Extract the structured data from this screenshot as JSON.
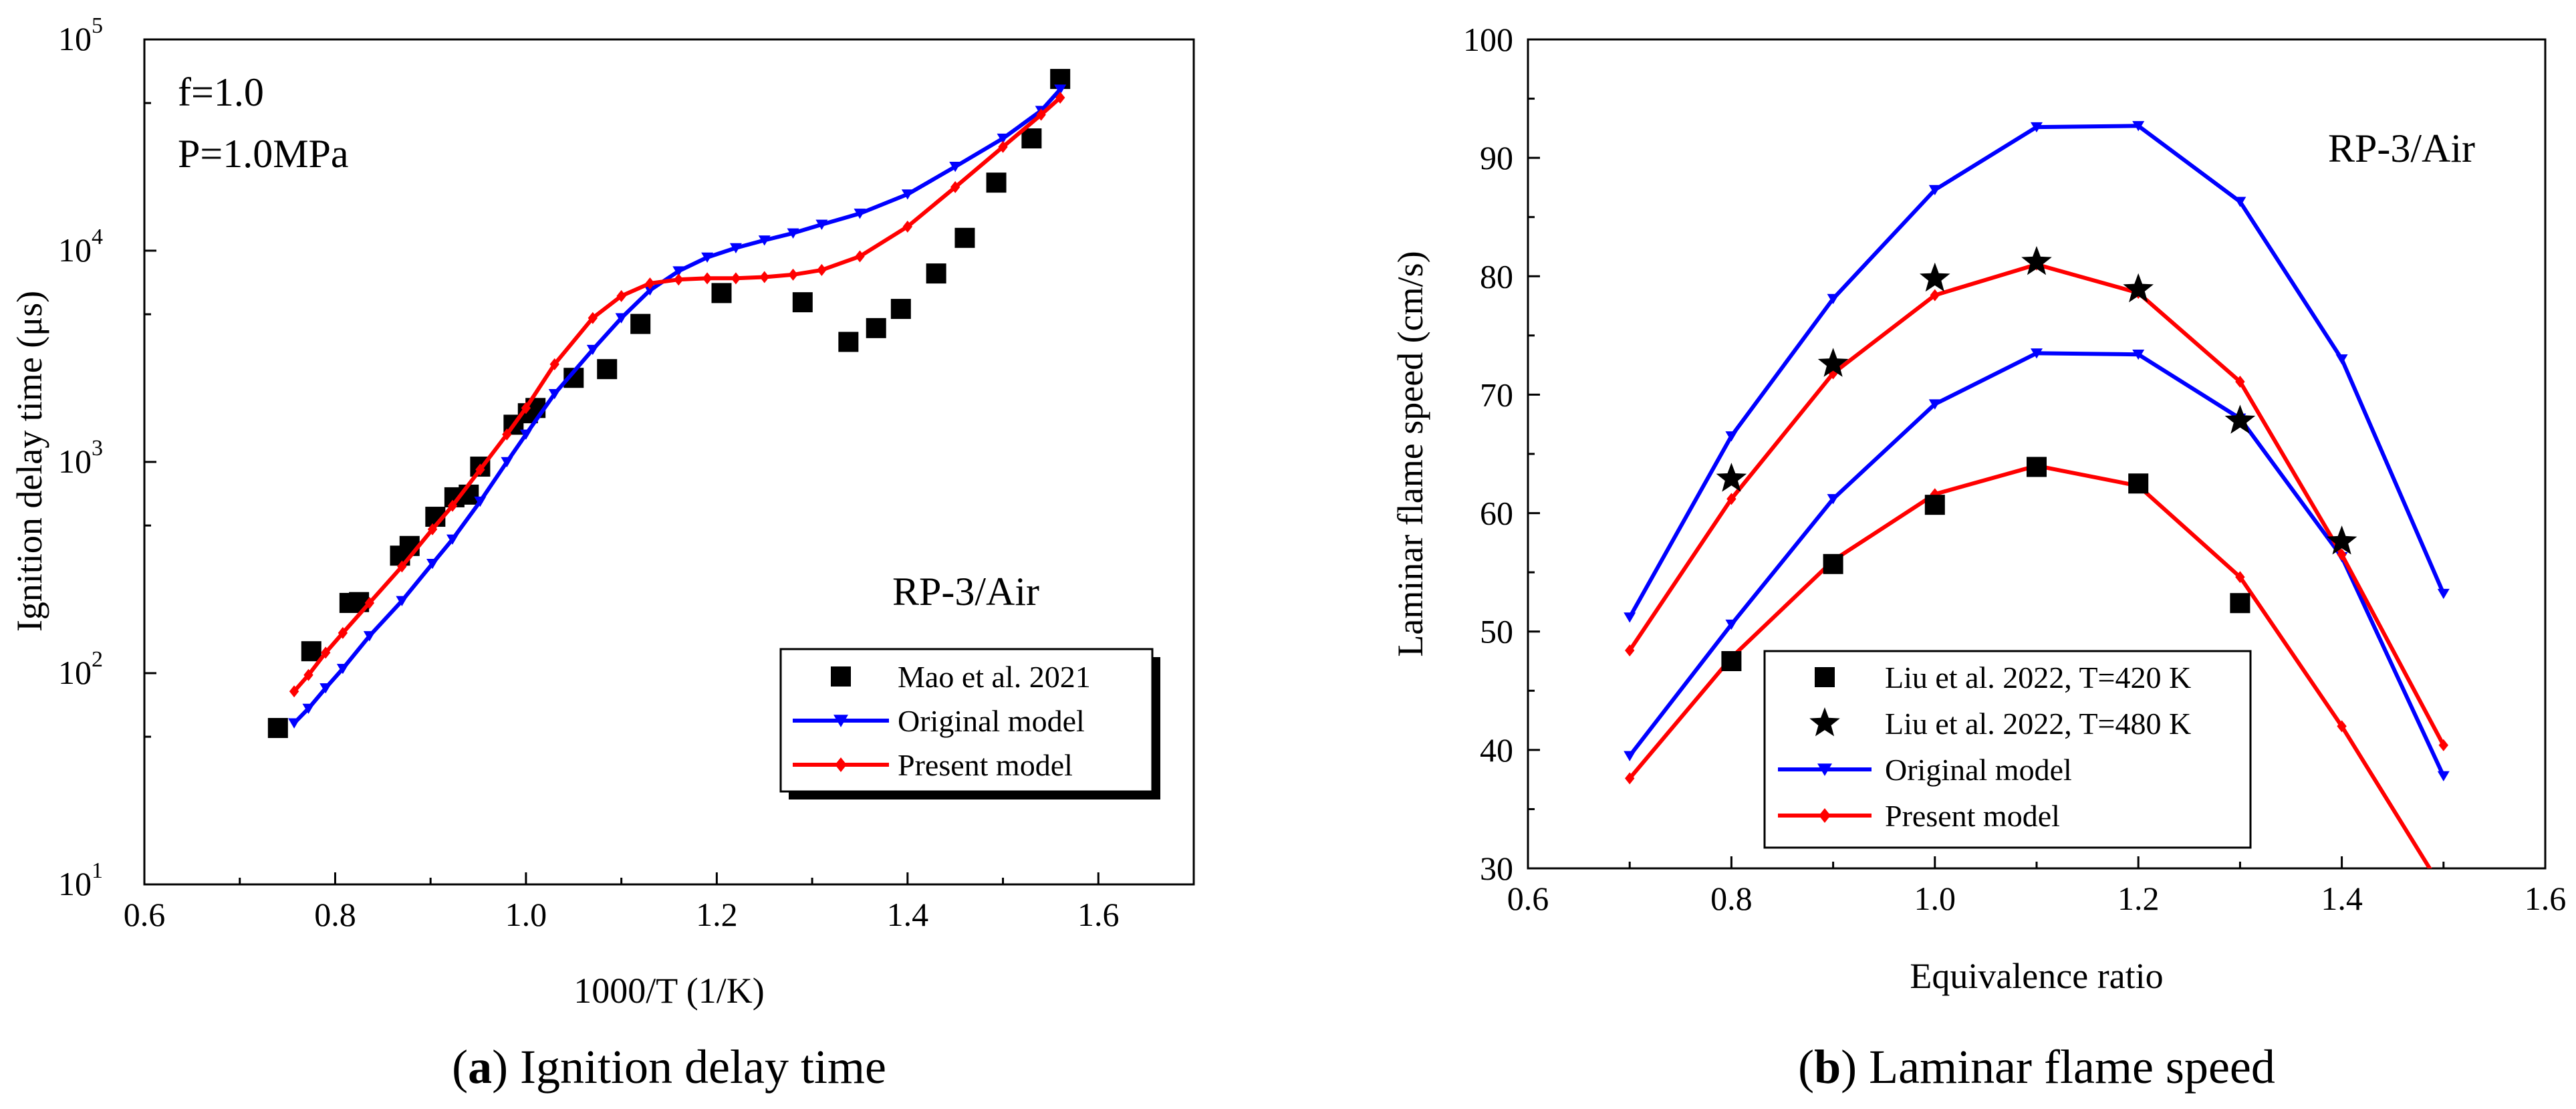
{
  "chart_data": [
    {
      "type": "line",
      "caption_id": "a",
      "caption_text": "Ignition delay time",
      "xlabel": "1000/T (1/K)",
      "ylabel": "Ignition delay time (μs)",
      "xlim": [
        0.6,
        1.7
      ],
      "ylim_log10": [
        1,
        5
      ],
      "yscale": "log",
      "xticks": [
        "0.6",
        "0.8",
        "1.0",
        "1.2",
        "1.4",
        "1.6"
      ],
      "yticks": [
        {
          "base": "10",
          "exp": "1"
        },
        {
          "base": "10",
          "exp": "2"
        },
        {
          "base": "10",
          "exp": "3"
        },
        {
          "base": "10",
          "exp": "4"
        },
        {
          "base": "10",
          "exp": "5"
        }
      ],
      "annotations": [
        "f=1.0",
        "P=1.0MPa",
        "RP-3/Air"
      ],
      "legend_position": "bottom-right",
      "series": [
        {
          "name": "Mao et al. 2021",
          "kind": "scatter",
          "marker": "square",
          "color": "#000000",
          "x": [
            0.74,
            0.775,
            0.815,
            0.825,
            0.868,
            0.878,
            0.905,
            0.925,
            0.94,
            0.952,
            0.987,
            1.002,
            1.01,
            1.05,
            1.085,
            1.12,
            1.205,
            1.29,
            1.338,
            1.367,
            1.393,
            1.43,
            1.46,
            1.493,
            1.53,
            1.56
          ],
          "y": [
            55,
            127,
            215,
            217,
            360,
            400,
            550,
            680,
            700,
            950,
            1500,
            1700,
            1800,
            2500,
            2750,
            4500,
            6300,
            5700,
            3700,
            4300,
            5300,
            7800,
            11500,
            21000,
            34000,
            65000
          ]
        },
        {
          "name": "Original model",
          "kind": "line",
          "marker": "triangle-down",
          "color": "#0000FF",
          "x": [
            0.757,
            0.772,
            0.79,
            0.808,
            0.836,
            0.87,
            0.902,
            0.923,
            0.952,
            0.98,
            1.0,
            1.03,
            1.07,
            1.1,
            1.13,
            1.16,
            1.19,
            1.22,
            1.25,
            1.28,
            1.31,
            1.35,
            1.4,
            1.45,
            1.5,
            1.54,
            1.56
          ],
          "y": [
            58,
            68,
            85,
            105,
            150,
            220,
            330,
            430,
            650,
            1000,
            1350,
            2100,
            3400,
            4800,
            6500,
            8000,
            9300,
            10300,
            11200,
            12100,
            13300,
            15000,
            18500,
            25000,
            34000,
            46000,
            58000
          ]
        },
        {
          "name": "Present model",
          "kind": "line",
          "marker": "diamond",
          "color": "#FF0000",
          "x": [
            0.757,
            0.772,
            0.79,
            0.808,
            0.836,
            0.87,
            0.902,
            0.923,
            0.952,
            0.98,
            1.0,
            1.03,
            1.07,
            1.1,
            1.13,
            1.16,
            1.19,
            1.22,
            1.25,
            1.28,
            1.31,
            1.35,
            1.4,
            1.45,
            1.5,
            1.54,
            1.56
          ],
          "y": [
            82,
            98,
            125,
            155,
            215,
            320,
            480,
            620,
            920,
            1350,
            1800,
            2900,
            4800,
            6100,
            7000,
            7300,
            7400,
            7400,
            7500,
            7700,
            8100,
            9400,
            13000,
            20000,
            31000,
            44000,
            53000
          ]
        }
      ]
    },
    {
      "type": "line",
      "caption_id": "b",
      "caption_text": "Laminar flame speed",
      "xlabel": "Equivalence ratio",
      "ylabel": "Laminar flame speed (cm/s)",
      "xlim": [
        0.6,
        1.6
      ],
      "ylim": [
        30,
        100
      ],
      "xticks": [
        "0.6",
        "0.8",
        "1.0",
        "1.2",
        "1.4",
        "1.6"
      ],
      "yticks": [
        "30",
        "40",
        "50",
        "60",
        "70",
        "80",
        "90",
        "100"
      ],
      "annotations": [
        "RP-3/Air"
      ],
      "legend_position": "bottom-left",
      "series": [
        {
          "name": "Liu et al. 2022, T=420 K",
          "kind": "scatter",
          "marker": "square",
          "color": "#000000",
          "x": [
            0.8,
            0.9,
            1.0,
            1.1,
            1.2,
            1.3
          ],
          "y": [
            47.5,
            55.7,
            60.7,
            63.9,
            62.5,
            52.4
          ]
        },
        {
          "name": "Liu et al. 2022, T=480 K",
          "kind": "scatter",
          "marker": "star",
          "color": "#000000",
          "x": [
            0.8,
            0.9,
            1.0,
            1.1,
            1.2,
            1.3,
            1.4
          ],
          "y": [
            62.9,
            72.6,
            79.8,
            81.2,
            78.9,
            67.8,
            57.6
          ]
        },
        {
          "name": "Original model",
          "kind": "line",
          "marker": "triangle-down",
          "color": "#0000FF",
          "x": [
            0.7,
            0.8,
            0.9,
            1.0,
            1.1,
            1.2,
            1.3,
            1.4,
            1.5
          ],
          "y": [
            51.2,
            66.5,
            78.1,
            87.3,
            92.6,
            92.7,
            86.3,
            73.0,
            53.2
          ]
        },
        {
          "name": "Original model",
          "kind": "line",
          "marker": "triangle-down",
          "color": "#0000FF",
          "in_legend": false,
          "x": [
            0.7,
            0.8,
            0.9,
            1.0,
            1.1,
            1.2,
            1.3,
            1.4,
            1.5
          ],
          "y": [
            39.5,
            50.6,
            61.2,
            69.2,
            73.5,
            73.4,
            68.0,
            56.3,
            37.8
          ]
        },
        {
          "name": "Present model",
          "kind": "line",
          "marker": "diamond",
          "color": "#FF0000",
          "x": [
            0.7,
            0.8,
            0.9,
            1.0,
            1.1,
            1.2,
            1.3,
            1.4,
            1.5
          ],
          "y": [
            48.4,
            61.2,
            71.8,
            78.4,
            81.0,
            78.6,
            71.1,
            56.5,
            40.4
          ]
        },
        {
          "name": "Present model",
          "kind": "line",
          "marker": "diamond",
          "color": "#FF0000",
          "in_legend": false,
          "x": [
            0.7,
            0.8,
            0.9,
            1.0,
            1.1,
            1.2,
            1.3,
            1.4,
            1.49
          ],
          "y": [
            37.6,
            47.8,
            56.0,
            61.6,
            64.0,
            62.3,
            54.6,
            42.0,
            29.5
          ]
        }
      ]
    }
  ]
}
